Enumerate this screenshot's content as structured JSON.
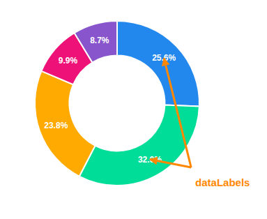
{
  "chart_data": {
    "type": "donut",
    "values": [
      25.6,
      32.0,
      23.8,
      9.9,
      8.7
    ],
    "value_labels": [
      "25.6%",
      "32.0%",
      "23.8%",
      "9.9%",
      "8.7%"
    ],
    "colors": [
      "#2288ee",
      "#00dd99",
      "#ffaa00",
      "#ee1177",
      "#8855cc"
    ],
    "data_labels": true,
    "annotation": "dataLabels"
  }
}
